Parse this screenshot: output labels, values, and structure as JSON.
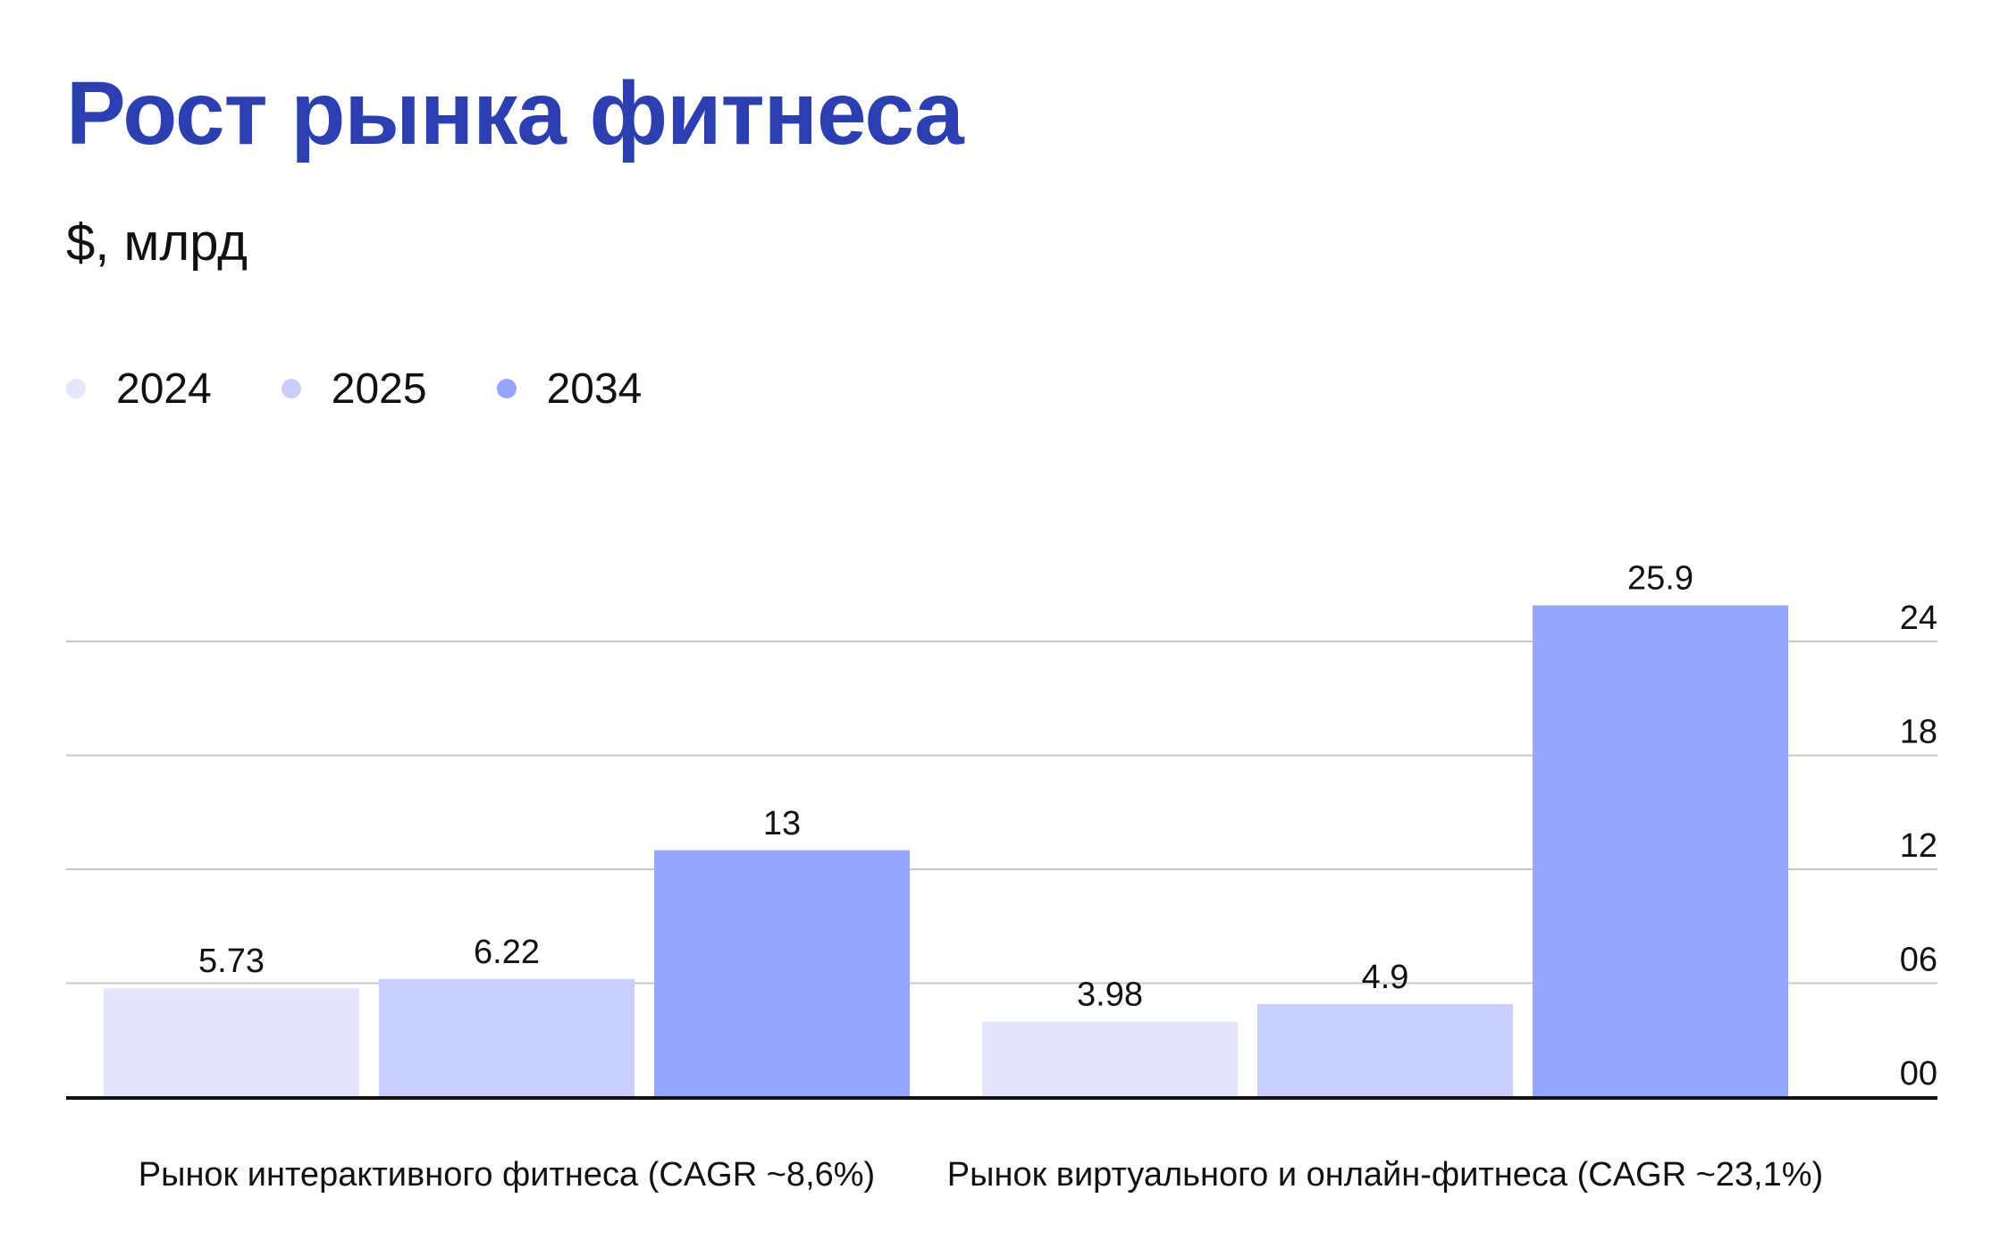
{
  "chart_data": {
    "type": "bar",
    "title": "Рост рынка фитнеса",
    "subtitle": "$, млрд",
    "categories": [
      "Рынок интерактивного фитнеса (CAGR ~8,6%)",
      "Рынок виртуального и онлайн-фитнеса (CAGR ~23,1%)"
    ],
    "series": [
      {
        "name": "2024",
        "color": "#e4e7fc",
        "values": [
          5.73,
          3.98
        ],
        "labels": [
          "5.73",
          "3.98"
        ]
      },
      {
        "name": "2025",
        "color": "#c9cffc",
        "values": [
          6.22,
          4.9
        ],
        "labels": [
          "6.22",
          "4.9"
        ]
      },
      {
        "name": "2034",
        "color": "#96a5fd",
        "values": [
          13,
          25.9
        ],
        "labels": [
          "13",
          "25.9"
        ]
      }
    ],
    "y_ticks": [
      {
        "value": 0,
        "label": "00"
      },
      {
        "value": 6,
        "label": "06"
      },
      {
        "value": 12,
        "label": "12"
      },
      {
        "value": 18,
        "label": "18"
      },
      {
        "value": 24,
        "label": "24"
      }
    ],
    "ylim": [
      0,
      26
    ],
    "y_axis_position": "right",
    "grid": true,
    "legend_position": "top-left"
  }
}
